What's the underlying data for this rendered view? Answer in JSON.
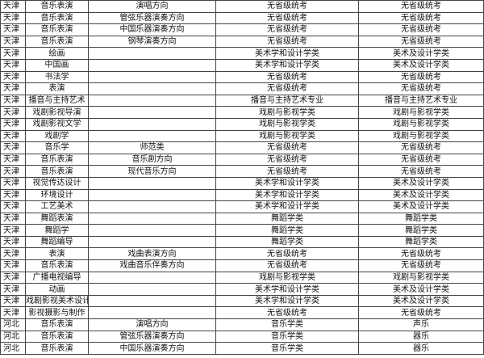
{
  "table": {
    "rows": [
      [
        "天津",
        "音乐表演",
        "演唱方向",
        "无省级统考",
        "无省级统考"
      ],
      [
        "天津",
        "音乐表演",
        "管弦乐器演奏方向",
        "无省级统考",
        "无省级统考"
      ],
      [
        "天津",
        "音乐表演",
        "中国乐器演奏方向",
        "无省级统考",
        "无省级统考"
      ],
      [
        "天津",
        "音乐表演",
        "钢琴演奏方向",
        "无省级统考",
        "无省级统考"
      ],
      [
        "天津",
        "绘画",
        "",
        "美术学和设计学类",
        "美术及设计学类"
      ],
      [
        "天津",
        "中国画",
        "",
        "美术学和设计学类",
        "美术及设计学类"
      ],
      [
        "天津",
        "书法学",
        "",
        "无省级统考",
        "无省级统考"
      ],
      [
        "天津",
        "表演",
        "",
        "无省级统考",
        "无省级统考"
      ],
      [
        "天津",
        "播音与主持艺术",
        "",
        "播音与主持艺术专业",
        "播音与主持艺术专业"
      ],
      [
        "天津",
        "戏剧影视导演",
        "",
        "戏剧与影视学类",
        "戏剧与影视学类"
      ],
      [
        "天津",
        "戏剧影视文学",
        "",
        "戏剧与影视学类",
        "戏剧与影视学类"
      ],
      [
        "天津",
        "戏剧学",
        "",
        "戏剧与影视学类",
        "戏剧与影视学类"
      ],
      [
        "天津",
        "音乐学",
        "师范类",
        "无省级统考",
        "无省级统考"
      ],
      [
        "天津",
        "音乐表演",
        "音乐剧方向",
        "无省级统考",
        "无省级统考"
      ],
      [
        "天津",
        "音乐表演",
        "现代音乐方向",
        "无省级统考",
        "无省级统考"
      ],
      [
        "天津",
        "视觉传达设计",
        "",
        "美术学和设计学类",
        "美术及设计学类"
      ],
      [
        "天津",
        "环境设计",
        "",
        "美术学和设计学类",
        "美术及设计学类"
      ],
      [
        "天津",
        "工艺美术",
        "",
        "美术学和设计学类",
        "美术及设计学类"
      ],
      [
        "天津",
        "舞蹈表演",
        "",
        "舞蹈学类",
        "舞蹈学类"
      ],
      [
        "天津",
        "舞蹈学",
        "",
        "舞蹈学类",
        "舞蹈学类"
      ],
      [
        "天津",
        "舞蹈编导",
        "",
        "舞蹈学类",
        "舞蹈学类"
      ],
      [
        "天津",
        "表演",
        "戏曲表演方向",
        "无省级统考",
        "无省级统考"
      ],
      [
        "天津",
        "音乐表演",
        "戏曲音乐伴奏方向",
        "无省级统考",
        "无省级统考"
      ],
      [
        "天津",
        "广播电视编导",
        "",
        "戏剧与影视学类",
        "戏剧与影视学类"
      ],
      [
        "天津",
        "动画",
        "",
        "美术学和设计学类",
        "美术及设计学类"
      ],
      [
        "天津",
        "戏剧影视美术设计",
        "",
        "美术学和设计学类",
        "美术及设计学类"
      ],
      [
        "天津",
        "影视摄影与制作",
        "",
        "无省级统考",
        "无省级统考"
      ],
      [
        "河北",
        "音乐表演",
        "演唱方向",
        "音乐学类",
        "声乐"
      ],
      [
        "河北",
        "音乐表演",
        "管弦乐器演奏方向",
        "音乐学类",
        "器乐"
      ],
      [
        "河北",
        "音乐表演",
        "中国乐器演奏方向",
        "音乐学类",
        "器乐"
      ]
    ]
  }
}
